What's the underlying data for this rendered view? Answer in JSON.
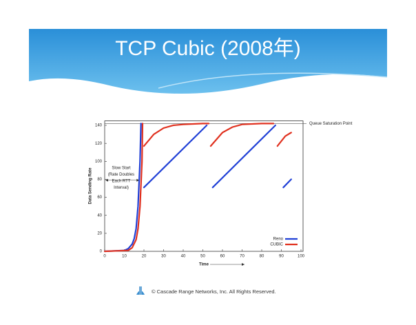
{
  "slide": {
    "title": "TCP Cubic (2008年)",
    "footer": "© Cascade Range Networks, Inc. All Rights Reserved."
  },
  "chart_data": {
    "type": "line",
    "xlabel": "Time",
    "ylabel": "Data Sending Rate",
    "xlim": [
      0,
      100
    ],
    "ylim": [
      0,
      145
    ],
    "xticks": [
      0,
      10,
      20,
      30,
      40,
      50,
      60,
      70,
      80,
      90,
      100
    ],
    "yticks": [
      0,
      20,
      40,
      60,
      80,
      100,
      120,
      140
    ],
    "legend": "lower right",
    "reference_line": {
      "value": 142,
      "label": "Queue Saturation Point"
    },
    "annotation": [
      "Slow Start",
      "(Rate Doubles",
      "Each RTT",
      "Interval)"
    ],
    "series": [
      {
        "name": "Reno",
        "color": "#1f3fd6",
        "x": [
          0,
          10,
          12,
          14,
          15,
          16,
          17,
          18,
          18.5,
          null,
          20,
          52,
          null,
          55,
          87,
          null,
          91,
          95
        ],
        "values": [
          0,
          1,
          3,
          8,
          14,
          25,
          50,
          100,
          142,
          null,
          71,
          140,
          null,
          71,
          140,
          null,
          71,
          80
        ]
      },
      {
        "name": "CUBIC",
        "color": "#e0301e",
        "x": [
          0,
          12,
          14,
          16,
          17,
          18,
          19,
          19.3,
          null,
          20,
          25,
          30,
          35,
          40,
          50,
          53,
          null,
          54,
          60,
          65,
          70,
          80,
          86,
          null,
          88,
          92,
          95
        ],
        "values": [
          0,
          1,
          4,
          13,
          25,
          50,
          100,
          142,
          null,
          117,
          130,
          137,
          140,
          141,
          142,
          142,
          null,
          117,
          132,
          138,
          141,
          142,
          142,
          null,
          117,
          128,
          132
        ]
      }
    ]
  }
}
